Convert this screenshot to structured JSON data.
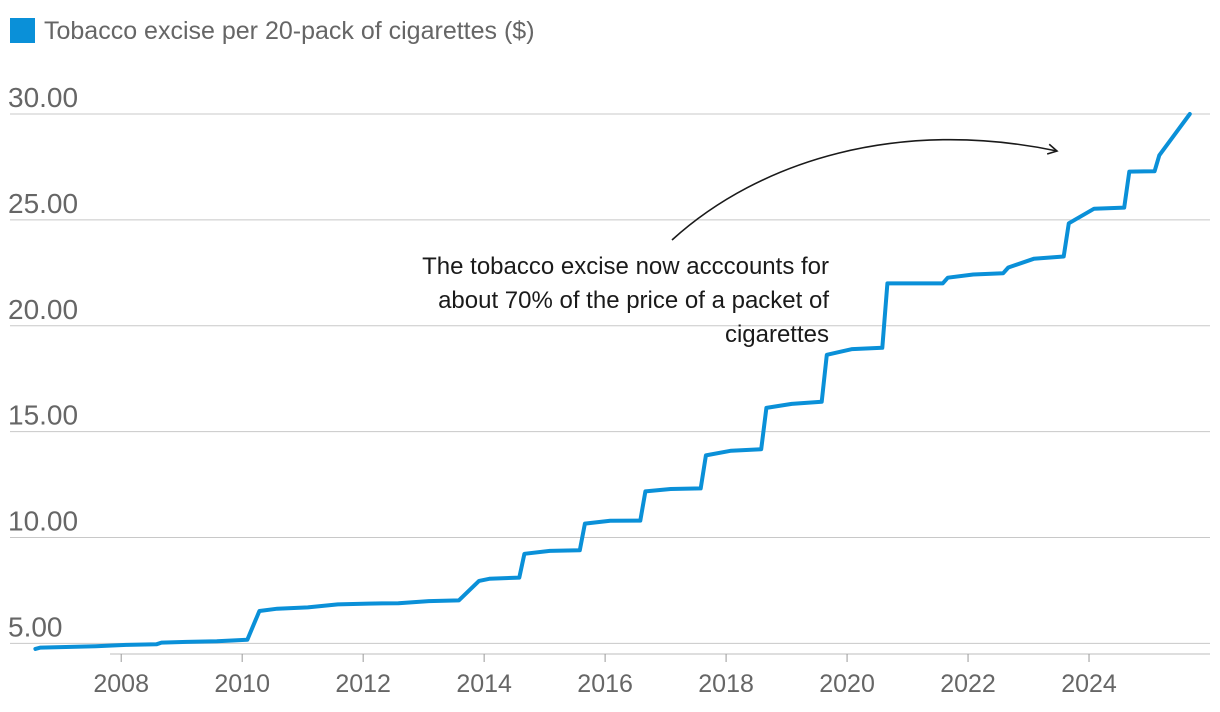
{
  "chart_data": {
    "type": "line",
    "legend": {
      "label": "Tobacco excise per 20-pack of cigarettes ($)",
      "color": "#0a90d8",
      "placement": "top-left"
    },
    "xlim": [
      "2006-03-01",
      "2026-01-01"
    ],
    "ylim": [
      4.5,
      30
    ],
    "grid": true,
    "y_ticks": [
      {
        "value": 30,
        "label": "30.00"
      },
      {
        "value": 25,
        "label": "25.00"
      },
      {
        "value": 20,
        "label": "20.00"
      },
      {
        "value": 15,
        "label": "15.00"
      },
      {
        "value": 10,
        "label": "10.00"
      },
      {
        "value": 5,
        "label": "5.00"
      }
    ],
    "x_ticks": [
      {
        "value": "2008-01-01",
        "label": "2008"
      },
      {
        "value": "2010-01-01",
        "label": "2010"
      },
      {
        "value": "2012-01-01",
        "label": "2012"
      },
      {
        "value": "2014-01-01",
        "label": "2014"
      },
      {
        "value": "2016-01-01",
        "label": "2016"
      },
      {
        "value": "2018-01-01",
        "label": "2018"
      },
      {
        "value": "2020-01-01",
        "label": "2020"
      },
      {
        "value": "2022-01-01",
        "label": "2022"
      },
      {
        "value": "2024-01-01",
        "label": "2024"
      }
    ],
    "series": [
      {
        "name": "Tobacco excise per 20-pack of cigarettes ($)",
        "color": "#0a90d8",
        "points": [
          [
            "2006-08-01",
            4.74
          ],
          [
            "2006-09-01",
            4.8
          ],
          [
            "2007-02-01",
            4.83
          ],
          [
            "2007-08-01",
            4.87
          ],
          [
            "2008-02-01",
            4.93
          ],
          [
            "2008-08-01",
            4.96
          ],
          [
            "2008-09-01",
            5.04
          ],
          [
            "2009-02-01",
            5.07
          ],
          [
            "2009-08-01",
            5.1
          ],
          [
            "2010-02-01",
            5.17
          ],
          [
            "2010-04-15",
            6.53
          ],
          [
            "2010-08-01",
            6.64
          ],
          [
            "2011-02-01",
            6.7
          ],
          [
            "2011-08-01",
            6.84
          ],
          [
            "2012-02-01",
            6.88
          ],
          [
            "2012-08-01",
            6.9
          ],
          [
            "2013-02-01",
            7.0
          ],
          [
            "2013-08-01",
            7.03
          ],
          [
            "2013-12-01",
            7.95
          ],
          [
            "2014-02-01",
            8.05
          ],
          [
            "2014-08-01",
            8.11
          ],
          [
            "2014-09-01",
            9.23
          ],
          [
            "2015-02-01",
            9.37
          ],
          [
            "2015-08-01",
            9.4
          ],
          [
            "2015-09-01",
            10.66
          ],
          [
            "2016-02-01",
            10.79
          ],
          [
            "2016-08-01",
            10.8
          ],
          [
            "2016-09-01",
            12.18
          ],
          [
            "2017-02-01",
            12.29
          ],
          [
            "2017-08-01",
            12.32
          ],
          [
            "2017-09-01",
            13.88
          ],
          [
            "2018-02-01",
            14.1
          ],
          [
            "2018-08-01",
            14.17
          ],
          [
            "2018-09-01",
            16.12
          ],
          [
            "2019-02-01",
            16.31
          ],
          [
            "2019-08-01",
            16.41
          ],
          [
            "2019-09-01",
            18.63
          ],
          [
            "2020-02-01",
            18.9
          ],
          [
            "2020-08-01",
            18.96
          ],
          [
            "2020-09-01",
            22.0
          ],
          [
            "2021-08-01",
            22.0
          ],
          [
            "2021-09-01",
            22.27
          ],
          [
            "2022-02-01",
            22.42
          ],
          [
            "2022-08-01",
            22.48
          ],
          [
            "2022-09-01",
            22.75
          ],
          [
            "2023-02-01",
            23.16
          ],
          [
            "2023-08-01",
            23.27
          ],
          [
            "2023-09-01",
            24.84
          ],
          [
            "2024-02-01",
            25.53
          ],
          [
            "2024-08-01",
            25.58
          ],
          [
            "2024-09-01",
            27.28
          ],
          [
            "2025-02-01",
            27.3
          ],
          [
            "2025-03-01",
            28.05
          ],
          [
            "2025-09-01",
            30.0
          ]
        ]
      }
    ],
    "annotation": {
      "lines": [
        "The tobacco excise now acccounts for",
        "about 70% of the price of a packet of",
        "cigarettes"
      ]
    }
  }
}
